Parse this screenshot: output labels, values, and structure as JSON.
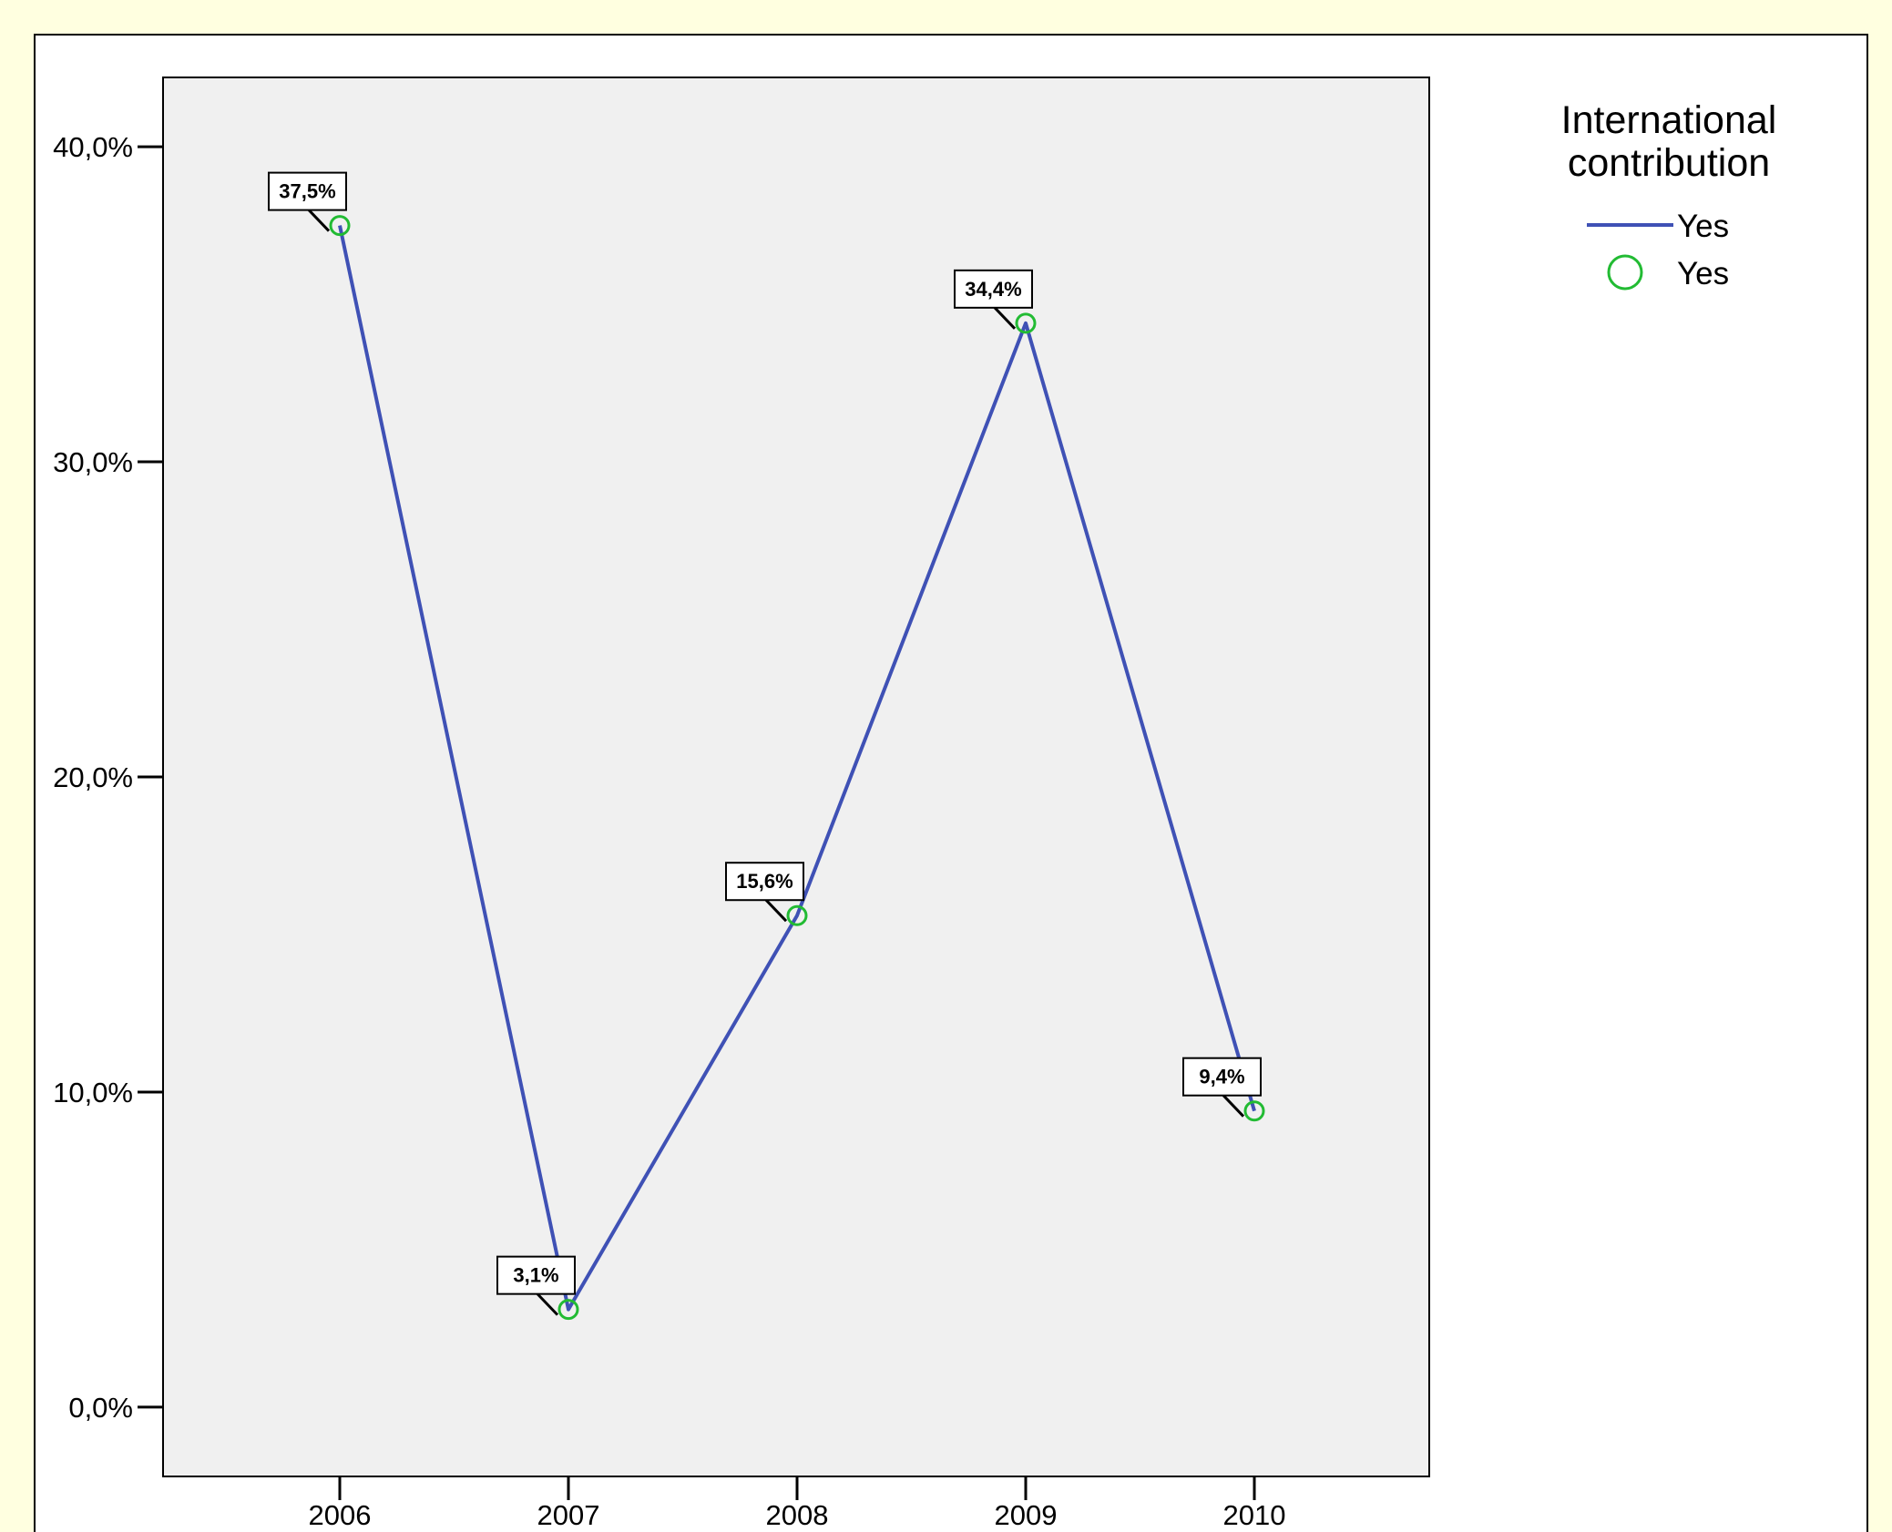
{
  "chart_data": {
    "type": "line",
    "title": "",
    "xlabel": "",
    "ylabel": "",
    "categories": [
      "2006",
      "2007",
      "2008",
      "2009",
      "2010"
    ],
    "yticks": [
      "0,0%",
      "10,0%",
      "20,0%",
      "30,0%",
      "40,0%"
    ],
    "ylim": [
      -2.2,
      42.2
    ],
    "grid": false,
    "legend": {
      "title_lines": [
        "International",
        "contribution"
      ],
      "position": "top-right",
      "entries": [
        {
          "label": "Yes",
          "kind": "line",
          "color": "#3f51b5"
        },
        {
          "label": "Yes",
          "kind": "marker",
          "color": "#22bb33"
        }
      ]
    },
    "series": [
      {
        "values": [
          37.5,
          3.1,
          15.6,
          34.4,
          9.4
        ],
        "data_labels": [
          "37,5%",
          "3,1%",
          "15,6%",
          "34,4%",
          "9,4%"
        ],
        "line_color": "#3f51b5",
        "marker_color": "#22bb33"
      }
    ]
  }
}
